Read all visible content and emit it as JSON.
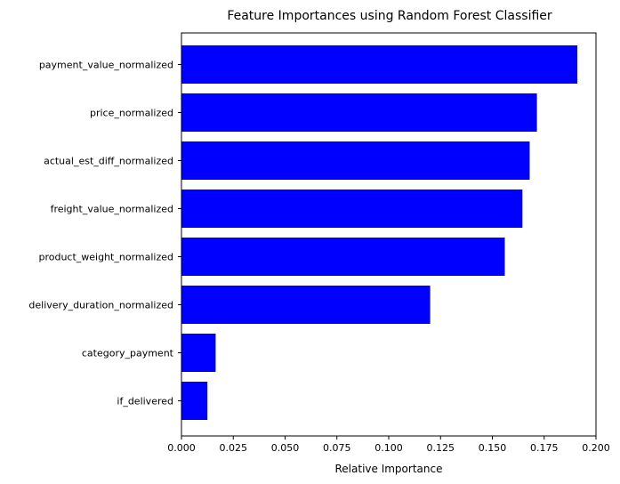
{
  "chart_data": {
    "type": "bar",
    "orientation": "horizontal",
    "title": "Feature Importances using Random Forest Classifier",
    "xlabel": "Relative Importance",
    "ylabel": "",
    "categories": [
      "payment_value_normalized",
      "price_normalized",
      "actual_est_diff_normalized",
      "freight_value_normalized",
      "product_weight_normalized",
      "delivery_duration_normalized",
      "category_payment",
      "if_delivered"
    ],
    "values": [
      0.191,
      0.1715,
      0.168,
      0.1645,
      0.156,
      0.12,
      0.0165,
      0.0125
    ],
    "xlim": [
      0.0,
      0.2
    ],
    "xticks": [
      "0.000",
      "0.025",
      "0.050",
      "0.075",
      "0.100",
      "0.125",
      "0.150",
      "0.175",
      "0.200"
    ],
    "bar_color": "#0000ff",
    "grid": false,
    "legend": null
  }
}
